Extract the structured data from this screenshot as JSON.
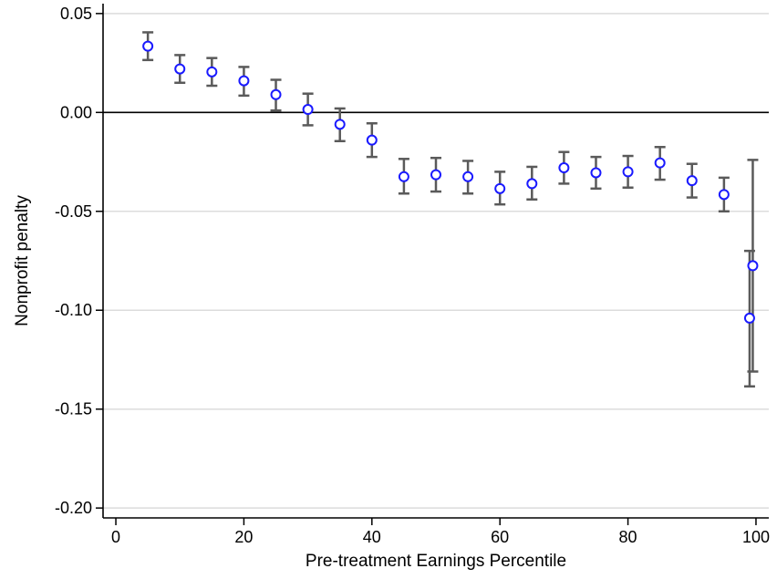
{
  "chart_data": {
    "type": "scatter",
    "title": "",
    "xlabel": "Pre-treatment Earnings Percentile",
    "ylabel": "Nonprofit penalty",
    "xlim": [
      -2,
      102
    ],
    "ylim": [
      -0.205,
      0.055
    ],
    "xticks": [
      0,
      20,
      40,
      60,
      80,
      100
    ],
    "xtick_labels": [
      "0",
      "20",
      "40",
      "60",
      "80",
      "100"
    ],
    "yticks": [
      0.05,
      0.0,
      -0.05,
      -0.1,
      -0.15,
      -0.2
    ],
    "ytick_labels": [
      "0.05",
      "0.00",
      "-0.05",
      "-0.10",
      "-0.15",
      "-0.20"
    ],
    "grid": "horizontal",
    "reference_line": 0,
    "colors": {
      "marker": "#1a1aff",
      "error_bar": "#5a5a5a",
      "grid": "#dcdcdc",
      "axis": "#000000"
    },
    "series": [
      {
        "points": [
          {
            "x": 5,
            "y": 0.0335,
            "lo": 0.0265,
            "hi": 0.0405
          },
          {
            "x": 10,
            "y": 0.022,
            "lo": 0.015,
            "hi": 0.029
          },
          {
            "x": 15,
            "y": 0.0205,
            "lo": 0.0135,
            "hi": 0.0275
          },
          {
            "x": 20,
            "y": 0.016,
            "lo": 0.0085,
            "hi": 0.023
          },
          {
            "x": 25,
            "y": 0.009,
            "lo": 0.001,
            "hi": 0.0165
          },
          {
            "x": 30,
            "y": 0.0015,
            "lo": -0.0065,
            "hi": 0.0095
          },
          {
            "x": 35,
            "y": -0.006,
            "lo": -0.0145,
            "hi": 0.002
          },
          {
            "x": 40,
            "y": -0.014,
            "lo": -0.0225,
            "hi": -0.0055
          },
          {
            "x": 45,
            "y": -0.0325,
            "lo": -0.041,
            "hi": -0.0235
          },
          {
            "x": 50,
            "y": -0.0315,
            "lo": -0.04,
            "hi": -0.023
          },
          {
            "x": 55,
            "y": -0.0325,
            "lo": -0.041,
            "hi": -0.0245
          },
          {
            "x": 60,
            "y": -0.0385,
            "lo": -0.0465,
            "hi": -0.03
          },
          {
            "x": 65,
            "y": -0.036,
            "lo": -0.044,
            "hi": -0.0275
          },
          {
            "x": 70,
            "y": -0.028,
            "lo": -0.036,
            "hi": -0.02
          },
          {
            "x": 75,
            "y": -0.0305,
            "lo": -0.0385,
            "hi": -0.0225
          },
          {
            "x": 80,
            "y": -0.03,
            "lo": -0.038,
            "hi": -0.022
          },
          {
            "x": 85,
            "y": -0.0255,
            "lo": -0.034,
            "hi": -0.0175
          },
          {
            "x": 90,
            "y": -0.0345,
            "lo": -0.043,
            "hi": -0.026
          },
          {
            "x": 95,
            "y": -0.0415,
            "lo": -0.05,
            "hi": -0.033
          },
          {
            "x": 99,
            "y": -0.104,
            "lo": -0.1385,
            "hi": -0.07
          },
          {
            "x": 99.5,
            "y": -0.0775,
            "lo": -0.131,
            "hi": -0.024
          }
        ]
      }
    ]
  }
}
